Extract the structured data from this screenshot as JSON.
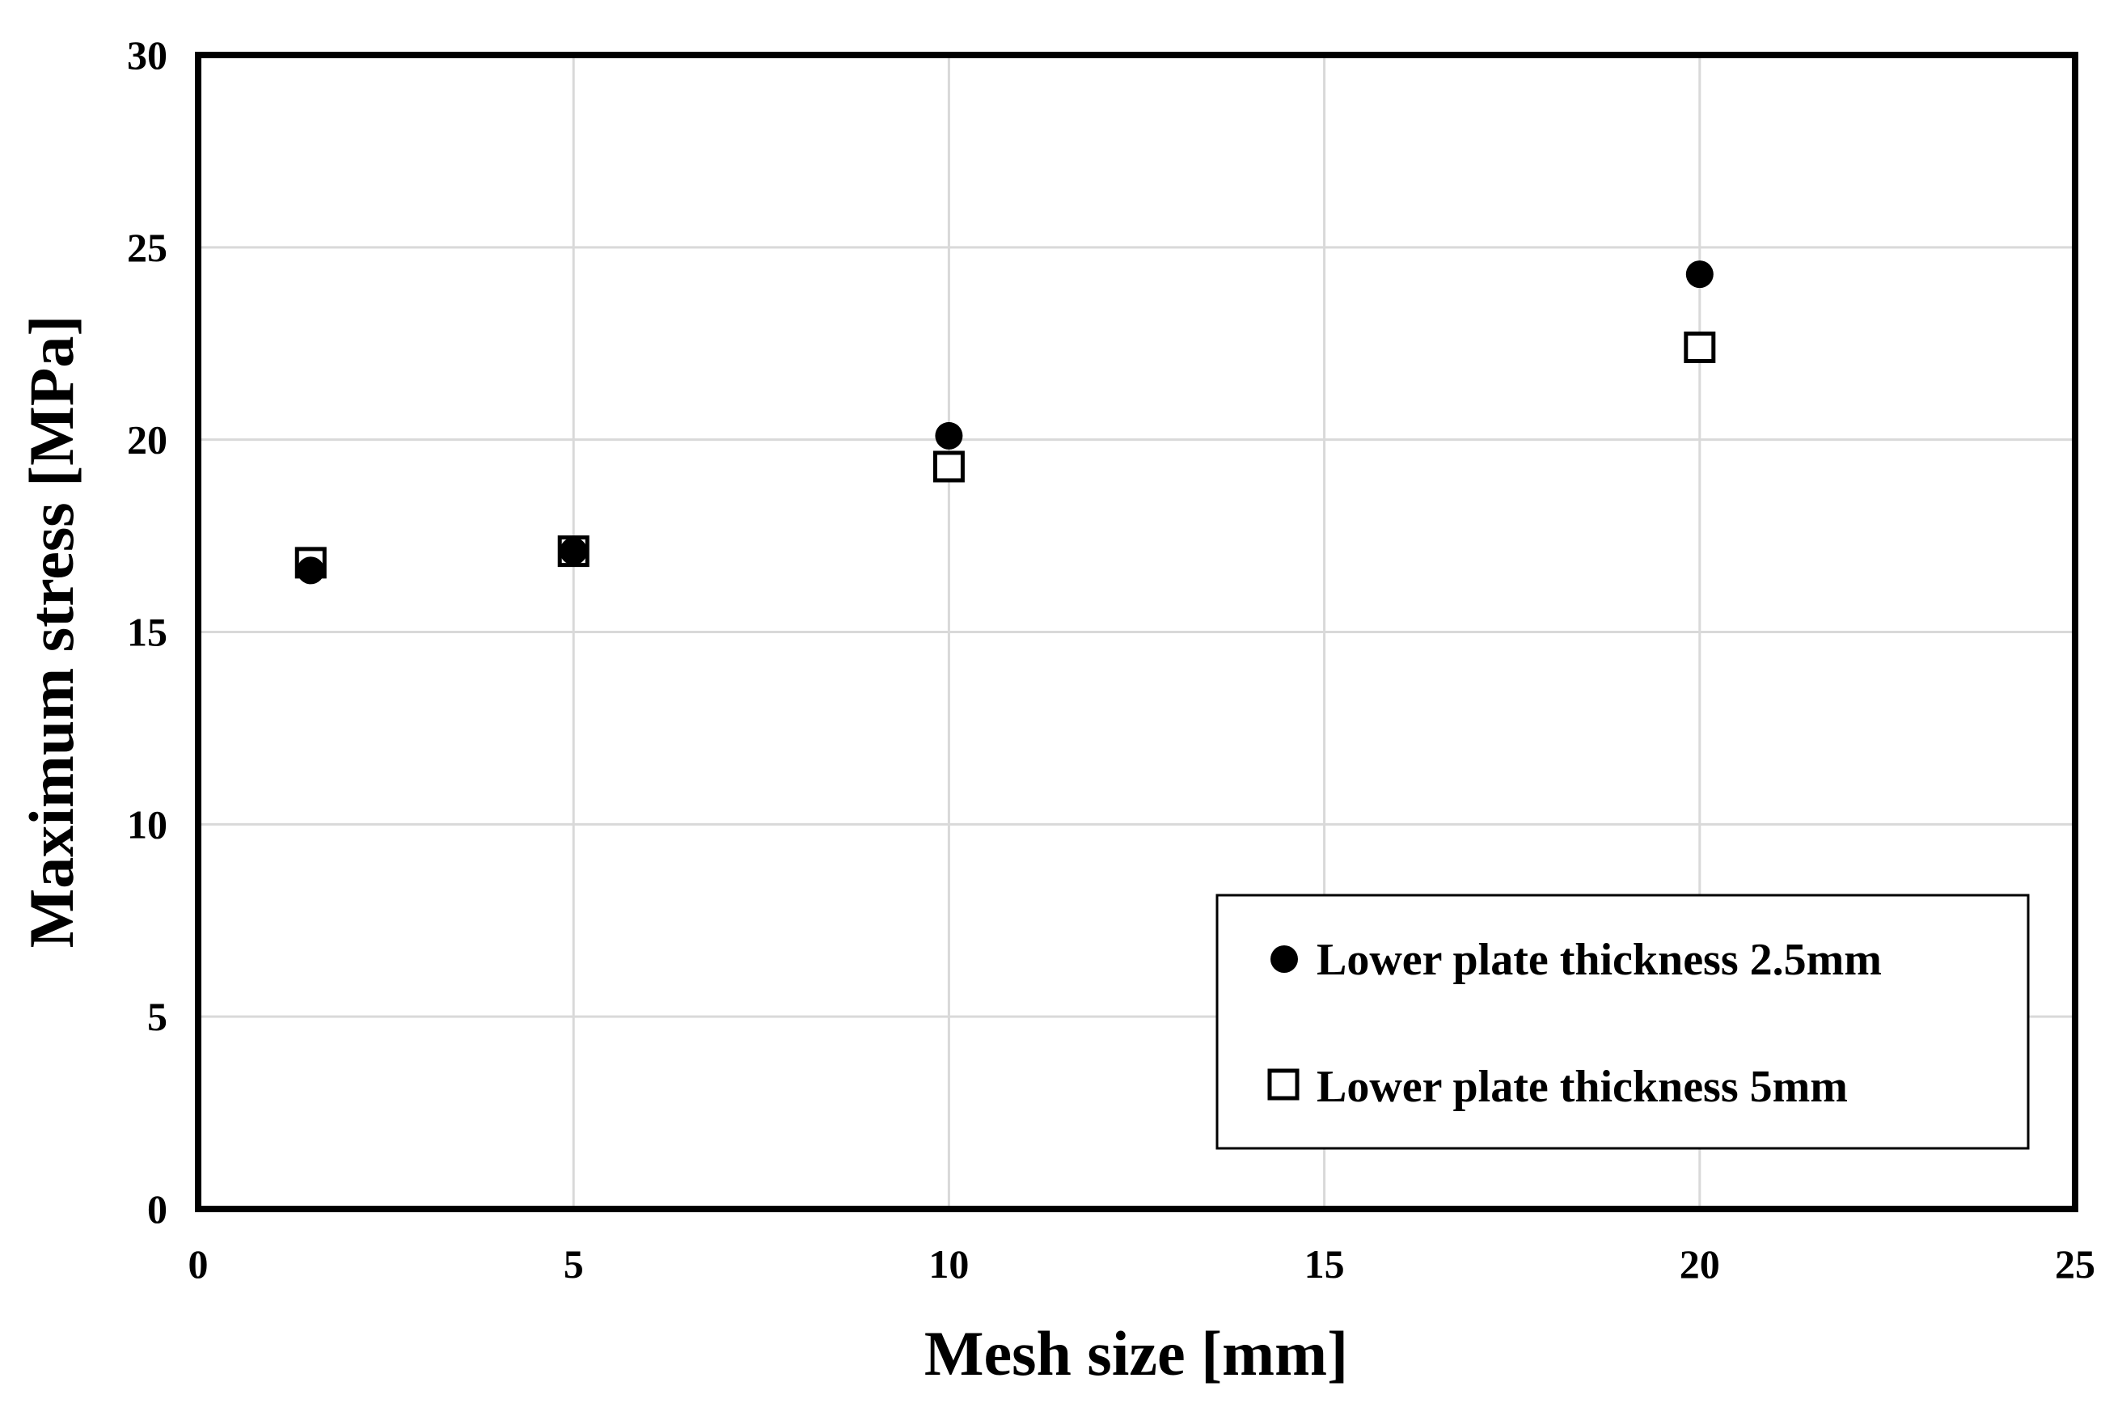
{
  "chart_data": {
    "type": "scatter",
    "title": "",
    "xlabel": "Mesh size [mm]",
    "ylabel": "Maximum stress [MPa]",
    "xlim": [
      0,
      25
    ],
    "ylim": [
      0,
      30
    ],
    "xticks": [
      0,
      5,
      10,
      15,
      20,
      25
    ],
    "yticks": [
      0,
      5,
      10,
      15,
      20,
      25,
      30
    ],
    "grid": true,
    "legend_position": "bottom-right",
    "series": [
      {
        "name": "Lower plate thickness 2.5mm",
        "marker": "filled-circle",
        "color": "#000000",
        "x": [
          1.5,
          5,
          10,
          20
        ],
        "y": [
          16.6,
          17.1,
          20.1,
          24.3
        ]
      },
      {
        "name": "Lower plate thickness 5mm",
        "marker": "open-square",
        "color": "#000000",
        "x": [
          1.5,
          5,
          10,
          20
        ],
        "y": [
          16.8,
          17.1,
          19.3,
          22.4
        ]
      }
    ]
  }
}
